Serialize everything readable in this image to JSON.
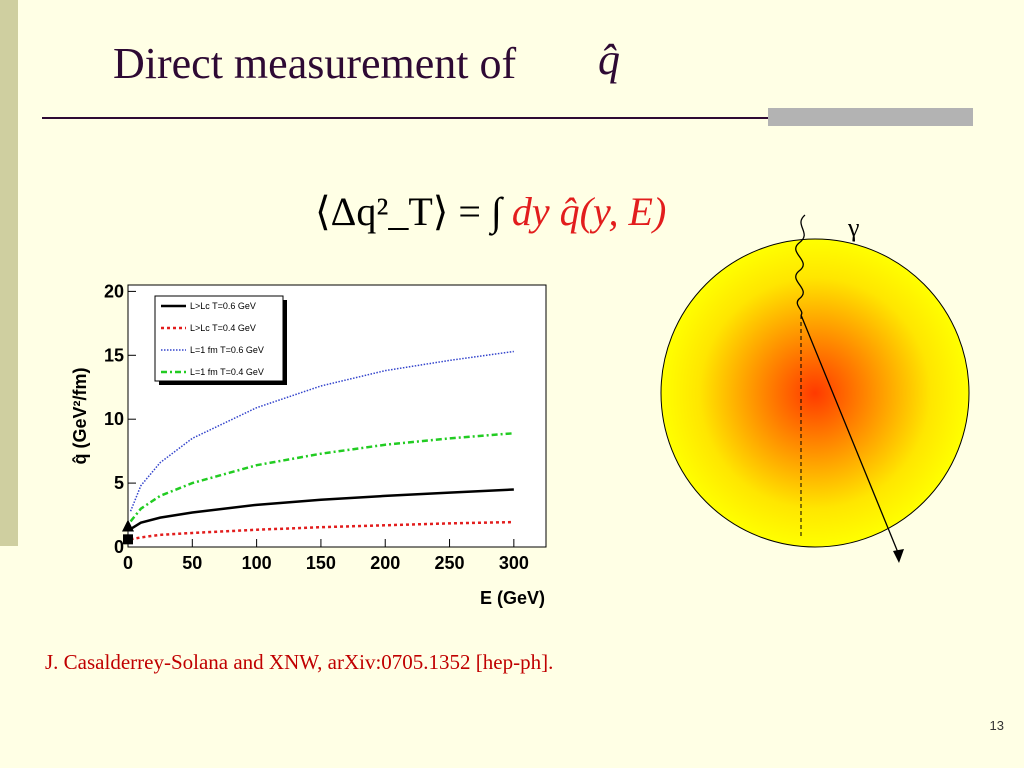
{
  "slide": {
    "title": "Direct measurement of",
    "title_symbol": "q̂",
    "formula_left": "⟨Δq²_T⟩ =",
    "formula_integral": "∫",
    "formula_right": "dy q̂(y, E)",
    "citation": "J. Casalderrey-Solana and XNW, arXiv:0705.1352 [hep-ph].",
    "page_number": "13",
    "diagram_label": "γ",
    "colors": {
      "title": "#2E0A34",
      "citation": "#C00000",
      "background": "#FFFFE5",
      "formula_accent": "#E21D1D"
    }
  },
  "chart_data": {
    "type": "line",
    "xlabel": "E (GeV)",
    "ylabel": "q̂ (GeV²/fm)",
    "xlim": [
      0,
      325
    ],
    "ylim": [
      0,
      20.5
    ],
    "x_ticks": [
      0,
      50,
      100,
      150,
      200,
      250,
      300
    ],
    "y_ticks": [
      0,
      5,
      10,
      15,
      20
    ],
    "legend_position": "top-left",
    "series": [
      {
        "name": "L>Lc T=0.6 GeV",
        "color": "#000000",
        "dash": "solid",
        "x": [
          2,
          10,
          25,
          50,
          100,
          150,
          200,
          250,
          300
        ],
        "y": [
          1.4,
          1.9,
          2.3,
          2.7,
          3.3,
          3.7,
          4.0,
          4.25,
          4.5
        ]
      },
      {
        "name": "L>Lc T=0.4 GeV",
        "color": "#E21D1D",
        "dash": "dotted",
        "x": [
          2,
          10,
          25,
          50,
          100,
          150,
          200,
          250,
          300
        ],
        "y": [
          0.6,
          0.75,
          0.95,
          1.1,
          1.35,
          1.55,
          1.7,
          1.85,
          1.95
        ]
      },
      {
        "name": "L=1 fm T=0.6 GeV",
        "color": "#3344CC",
        "dash": "fine-dotted",
        "x": [
          2,
          10,
          25,
          50,
          100,
          150,
          200,
          250,
          300
        ],
        "y": [
          2.8,
          4.8,
          6.6,
          8.5,
          10.9,
          12.6,
          13.8,
          14.6,
          15.3
        ]
      },
      {
        "name": "L=1 fm T=0.4 GeV",
        "color": "#22CC22",
        "dash": "dash-dot",
        "x": [
          2,
          10,
          25,
          50,
          100,
          150,
          200,
          250,
          300
        ],
        "y": [
          2.0,
          3.0,
          4.0,
          5.0,
          6.4,
          7.3,
          8.0,
          8.5,
          8.9
        ]
      }
    ],
    "markers": [
      {
        "shape": "triangle",
        "x": 0,
        "y": 1.6
      },
      {
        "shape": "square",
        "x": 0,
        "y": 0.6
      }
    ]
  }
}
